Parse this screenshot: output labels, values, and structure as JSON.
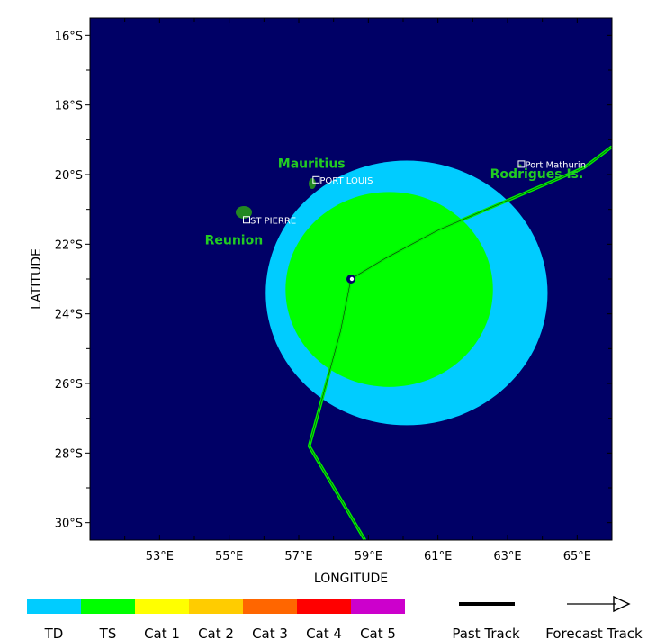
{
  "map": {
    "xlabel": "LONGITUDE",
    "ylabel": "LATITUDE",
    "lon_ticks": [
      {
        "value": 53,
        "label": "53°E"
      },
      {
        "value": 55,
        "label": "55°E"
      },
      {
        "value": 57,
        "label": "57°E"
      },
      {
        "value": 59,
        "label": "59°E"
      },
      {
        "value": 61,
        "label": "61°E"
      },
      {
        "value": 63,
        "label": "63°E"
      },
      {
        "value": 65,
        "label": "65°E"
      }
    ],
    "lat_ticks": [
      {
        "value": -16,
        "label": "16°S"
      },
      {
        "value": -18,
        "label": "18°S"
      },
      {
        "value": -20,
        "label": "20°S"
      },
      {
        "value": -22,
        "label": "22°S"
      },
      {
        "value": -24,
        "label": "24°S"
      },
      {
        "value": -26,
        "label": "26°S"
      },
      {
        "value": -28,
        "label": "28°S"
      },
      {
        "value": -30,
        "label": "30°S"
      }
    ],
    "lon_range": [
      51.0,
      66.0
    ],
    "lat_range": [
      -15.5,
      -30.5
    ],
    "colors": {
      "ocean": "#000066",
      "td_wind": "#00ccff",
      "ts_wind": "#00ff00",
      "track": "#00ee00",
      "land": "#228822",
      "place_label": "#22cc22"
    },
    "storm_center": {
      "lon": 58.5,
      "lat": -23.0
    },
    "wind_fields": [
      {
        "name": "TD",
        "lon": 60.1,
        "lat": -23.4,
        "r_lon": 4.05,
        "r_lat": 3.8
      },
      {
        "name": "TS",
        "lon": 59.6,
        "lat": -23.3,
        "r_lon": 2.98,
        "r_lat": 2.8
      }
    ],
    "track_points": [
      {
        "lon": 66.0,
        "lat": -19.2
      },
      {
        "lon": 65.2,
        "lat": -19.8
      },
      {
        "lon": 61.0,
        "lat": -21.6
      },
      {
        "lon": 59.5,
        "lat": -22.4
      },
      {
        "lon": 58.5,
        "lat": -23.0
      },
      {
        "lon": 58.2,
        "lat": -24.5
      },
      {
        "lon": 57.3,
        "lat": -27.8
      },
      {
        "lon": 58.9,
        "lat": -30.5
      }
    ],
    "places": [
      {
        "name": "Mauritius",
        "lon": 56.4,
        "lat": -19.8
      },
      {
        "name": "Rodrigues Is.",
        "lon": 62.5,
        "lat": -20.1
      },
      {
        "name": "Reunion",
        "lon": 54.3,
        "lat": -22.0
      }
    ],
    "cities": [
      {
        "name": "PORT LOUIS",
        "lon": 57.5,
        "lat": -20.15
      },
      {
        "name": "Port Mathurin",
        "lon": 63.4,
        "lat": -19.7
      },
      {
        "name": "ST PIERRE",
        "lon": 55.5,
        "lat": -21.3
      }
    ]
  },
  "legend": {
    "scale": [
      {
        "label": "TD",
        "color": "#00ccff"
      },
      {
        "label": "TS",
        "color": "#00ff00"
      },
      {
        "label": "Cat 1",
        "color": "#ffff00"
      },
      {
        "label": "Cat 2",
        "color": "#ffcc00"
      },
      {
        "label": "Cat 3",
        "color": "#ff6600"
      },
      {
        "label": "Cat 4",
        "color": "#ff0000"
      },
      {
        "label": "Cat 5",
        "color": "#cc00cc"
      }
    ],
    "past_track_label": "Past Track",
    "forecast_track_label": "Forecast Track"
  }
}
